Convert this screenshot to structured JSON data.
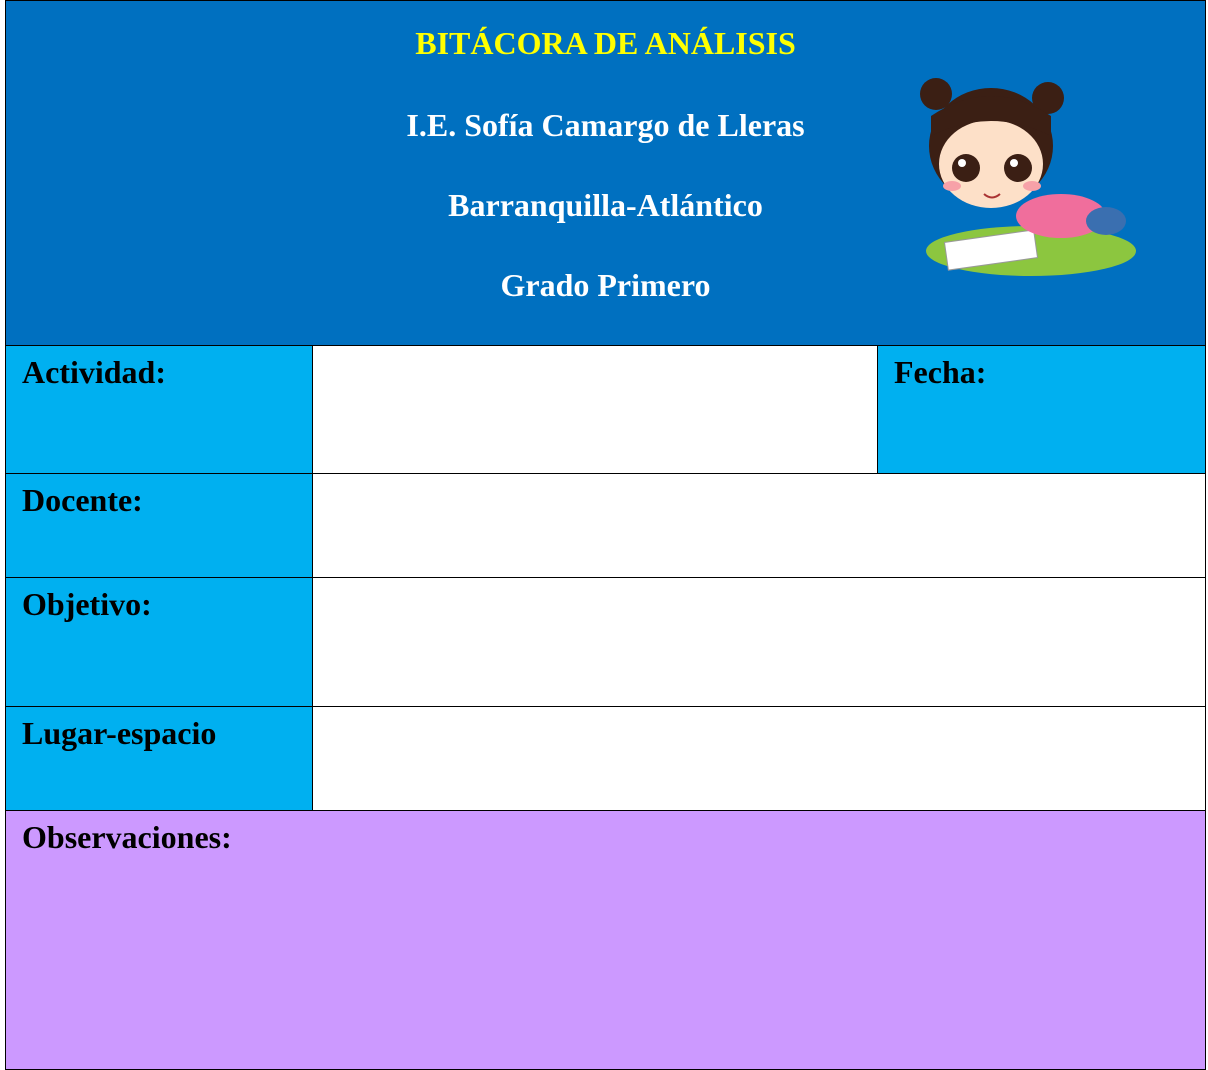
{
  "header": {
    "title": "BITÁCORA DE ANÁLISIS",
    "institution": "I.E. Sofía Camargo de Lleras",
    "city": "Barranquilla-Atlántico",
    "grade": "Grado Primero"
  },
  "form": {
    "activity_label": "Actividad:",
    "date_label": "Fecha:",
    "teacher_label": "Docente:",
    "objective_label": "Objetivo:",
    "place_label": "Lugar-espacio",
    "observations_label": "Observaciones:"
  }
}
